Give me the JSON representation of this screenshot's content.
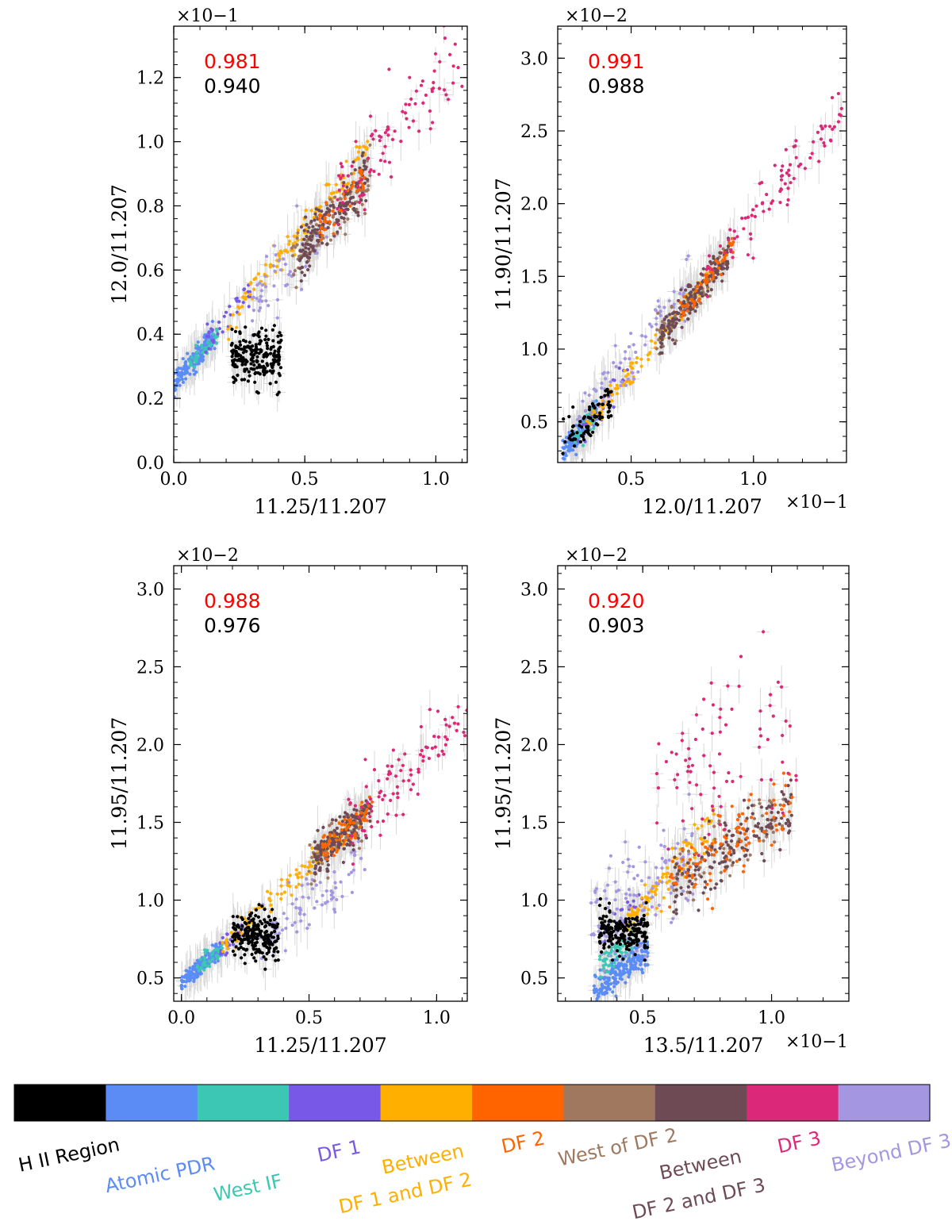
{
  "palette": {
    "hii": "#000000",
    "atomic_pdr": "#5b8cf5",
    "west_if": "#3cc6b4",
    "df1": "#7858e6",
    "between_12": "#ffaf00",
    "df2": "#ff6400",
    "west_df2": "#a07860",
    "between_23": "#6e4a54",
    "df3": "#dc2878",
    "beyond_df3": "#a596e1",
    "errorbar": "#d9d9d9",
    "corr_primary": "#ff0000",
    "corr_secondary": "#000000"
  },
  "chart_data": [
    {
      "id": "p1",
      "type": "scatter",
      "xlabel": "11.25/11.207",
      "ylabel": "12.0/11.207",
      "x_multiplier": "",
      "y_multiplier": "×10−1",
      "xlim": [
        0.0,
        1.12
      ],
      "ylim": [
        0.0,
        1.36
      ],
      "xticks": [
        0.0,
        0.5,
        1.0
      ],
      "xtick_labels": [
        "0.0",
        "0.5",
        "1.0"
      ],
      "yticks": [
        0.0,
        0.2,
        0.4,
        0.6,
        0.8,
        1.0,
        1.2
      ],
      "ytick_labels": [
        "0.0",
        "0.2",
        "0.4",
        "0.6",
        "0.8",
        "1.0",
        "1.2"
      ],
      "correlation_all": "0.981",
      "correlation_subset": "0.940",
      "clusters": [
        {
          "region": "atomic_pdr",
          "n": 170,
          "xr": [
            0.0,
            0.16
          ],
          "y0": 0.24,
          "slope": 1.0,
          "sy": 0.018
        },
        {
          "region": "west_if",
          "n": 40,
          "xr": [
            0.06,
            0.17
          ],
          "y0": 0.25,
          "slope": 0.9,
          "sy": 0.012
        },
        {
          "region": "df1",
          "n": 35,
          "xr": [
            0.12,
            0.3
          ],
          "y0": 0.27,
          "slope": 0.9,
          "sy": 0.02
        },
        {
          "region": "hii",
          "n": 220,
          "xr": [
            0.22,
            0.41
          ],
          "y0": 0.33,
          "slope": 0.0,
          "sy": 0.04
        },
        {
          "region": "between_12",
          "n": 110,
          "xr": [
            0.2,
            0.74
          ],
          "y0": 0.23,
          "slope": 1.02,
          "sy": 0.028
        },
        {
          "region": "beyond_df3",
          "n": 60,
          "xr": [
            0.3,
            0.62
          ],
          "y0": 0.28,
          "slope": 0.75,
          "sy": 0.06
        },
        {
          "region": "west_df2",
          "n": 90,
          "xr": [
            0.45,
            0.75
          ],
          "y0": 0.22,
          "slope": 0.9,
          "sy": 0.04
        },
        {
          "region": "between_23",
          "n": 170,
          "xr": [
            0.48,
            0.74
          ],
          "y0": 0.22,
          "slope": 0.9,
          "sy": 0.04
        },
        {
          "region": "df2",
          "n": 40,
          "xr": [
            0.55,
            0.74
          ],
          "y0": 0.22,
          "slope": 0.92,
          "sy": 0.03
        },
        {
          "region": "df3",
          "n": 90,
          "xr": [
            0.62,
            1.12
          ],
          "y0": 0.22,
          "slope": 0.98,
          "sy": 0.06
        }
      ]
    },
    {
      "id": "p2",
      "type": "scatter",
      "xlabel": "12.0/11.207",
      "ylabel": "11.90/11.207",
      "x_multiplier": "×10−1",
      "y_multiplier": "×10−2",
      "xlim": [
        0.2,
        1.38
      ],
      "ylim": [
        0.22,
        3.22
      ],
      "xticks": [
        0.5,
        1.0
      ],
      "xtick_labels": [
        "0.5",
        "1.0"
      ],
      "yticks": [
        0.5,
        1.0,
        1.5,
        2.0,
        2.5,
        3.0
      ],
      "ytick_labels": [
        "0.5",
        "1.0",
        "1.5",
        "2.0",
        "2.5",
        "3.0"
      ],
      "correlation_all": "0.991",
      "correlation_subset": "0.988",
      "clusters": [
        {
          "region": "atomic_pdr",
          "n": 120,
          "xr": [
            0.22,
            0.36
          ],
          "y0": -0.15,
          "slope": 2.0,
          "sy": 0.04
        },
        {
          "region": "west_if",
          "n": 40,
          "xr": [
            0.27,
            0.35
          ],
          "y0": -0.15,
          "slope": 2.0,
          "sy": 0.04
        },
        {
          "region": "hii",
          "n": 80,
          "xr": [
            0.22,
            0.42
          ],
          "y0": -0.05,
          "slope": 1.7,
          "sy": 0.08
        },
        {
          "region": "df1",
          "n": 30,
          "xr": [
            0.28,
            0.5
          ],
          "y0": -0.15,
          "slope": 2.0,
          "sy": 0.05
        },
        {
          "region": "between_12",
          "n": 90,
          "xr": [
            0.32,
            0.82
          ],
          "y0": -0.18,
          "slope": 2.05,
          "sy": 0.04
        },
        {
          "region": "beyond_df3",
          "n": 80,
          "xr": [
            0.28,
            0.75
          ],
          "y0": 0.0,
          "slope": 1.95,
          "sy": 0.08
        },
        {
          "region": "west_df2",
          "n": 80,
          "xr": [
            0.6,
            0.9
          ],
          "y0": -0.15,
          "slope": 2.0,
          "sy": 0.06
        },
        {
          "region": "between_23",
          "n": 180,
          "xr": [
            0.62,
            0.9
          ],
          "y0": -0.15,
          "slope": 2.0,
          "sy": 0.06
        },
        {
          "region": "df2",
          "n": 50,
          "xr": [
            0.7,
            0.92
          ],
          "y0": -0.18,
          "slope": 2.05,
          "sy": 0.04
        },
        {
          "region": "df3",
          "n": 90,
          "xr": [
            0.8,
            1.36
          ],
          "y0": -0.15,
          "slope": 2.05,
          "sy": 0.08
        }
      ]
    },
    {
      "id": "p3",
      "type": "scatter",
      "xlabel": "11.25/11.207",
      "ylabel": "11.95/11.207",
      "x_multiplier": "",
      "y_multiplier": "×10−2",
      "xlim": [
        -0.03,
        1.12
      ],
      "ylim": [
        0.35,
        3.15
      ],
      "xticks": [
        0.0,
        0.5,
        1.0
      ],
      "xtick_labels": [
        "0.0",
        "0.5",
        "1.0"
      ],
      "yticks": [
        0.5,
        1.0,
        1.5,
        2.0,
        2.5,
        3.0
      ],
      "ytick_labels": [
        "0.5",
        "1.0",
        "1.5",
        "2.0",
        "2.5",
        "3.0"
      ],
      "correlation_all": "0.988",
      "correlation_subset": "0.976",
      "clusters": [
        {
          "region": "atomic_pdr",
          "n": 160,
          "xr": [
            0.0,
            0.16
          ],
          "y0": 0.47,
          "slope": 1.4,
          "sy": 0.03
        },
        {
          "region": "west_if",
          "n": 40,
          "xr": [
            0.06,
            0.16
          ],
          "y0": 0.48,
          "slope": 1.4,
          "sy": 0.03
        },
        {
          "region": "hii",
          "n": 220,
          "xr": [
            0.2,
            0.38
          ],
          "y0": 0.76,
          "slope": 0.0,
          "sy": 0.07
        },
        {
          "region": "between_12",
          "n": 110,
          "xr": [
            0.15,
            0.72
          ],
          "y0": 0.45,
          "slope": 1.55,
          "sy": 0.04
        },
        {
          "region": "df1",
          "n": 30,
          "xr": [
            0.15,
            0.28
          ],
          "y0": 0.45,
          "slope": 1.5,
          "sy": 0.04
        },
        {
          "region": "beyond_df3",
          "n": 80,
          "xr": [
            0.3,
            0.72
          ],
          "y0": 0.3,
          "slope": 1.35,
          "sy": 0.09
        },
        {
          "region": "west_df2",
          "n": 70,
          "xr": [
            0.5,
            0.72
          ],
          "y0": 0.5,
          "slope": 1.45,
          "sy": 0.07
        },
        {
          "region": "between_23",
          "n": 170,
          "xr": [
            0.52,
            0.74
          ],
          "y0": 0.5,
          "slope": 1.45,
          "sy": 0.07
        },
        {
          "region": "df2",
          "n": 60,
          "xr": [
            0.55,
            0.75
          ],
          "y0": 0.48,
          "slope": 1.5,
          "sy": 0.05
        },
        {
          "region": "df3",
          "n": 90,
          "xr": [
            0.65,
            1.12
          ],
          "y0": 0.45,
          "slope": 1.55,
          "sy": 0.12
        }
      ]
    },
    {
      "id": "p4",
      "type": "scatter",
      "xlabel": "13.5/11.207",
      "ylabel": "11.95/11.207",
      "x_multiplier": "×10−1",
      "y_multiplier": "×10−2",
      "xlim": [
        0.17,
        1.3
      ],
      "ylim": [
        0.35,
        3.15
      ],
      "xticks": [
        0.5,
        1.0
      ],
      "xtick_labels": [
        "0.5",
        "1.0"
      ],
      "yticks": [
        0.5,
        1.0,
        1.5,
        2.0,
        2.5,
        3.0
      ],
      "ytick_labels": [
        "0.5",
        "1.0",
        "1.5",
        "2.0",
        "2.5",
        "3.0"
      ],
      "correlation_all": "0.920",
      "correlation_subset": "0.903",
      "clusters": [
        {
          "region": "atomic_pdr",
          "n": 200,
          "xr": [
            0.31,
            0.52
          ],
          "y0": 0.0,
          "slope": 1.3,
          "sy": 0.05
        },
        {
          "region": "west_if",
          "n": 60,
          "xr": [
            0.33,
            0.47
          ],
          "y0": 0.18,
          "slope": 1.2,
          "sy": 0.04
        },
        {
          "region": "hii",
          "n": 200,
          "xr": [
            0.33,
            0.52
          ],
          "y0": 0.8,
          "slope": 0.0,
          "sy": 0.07
        },
        {
          "region": "beyond_df3",
          "n": 120,
          "xr": [
            0.3,
            0.7
          ],
          "y0": 0.55,
          "slope": 1.0,
          "sy": 0.18
        },
        {
          "region": "between_12",
          "n": 100,
          "xr": [
            0.42,
            0.78
          ],
          "y0": 0.05,
          "slope": 1.85,
          "sy": 0.06
        },
        {
          "region": "df1",
          "n": 25,
          "xr": [
            0.35,
            0.5
          ],
          "y0": 0.35,
          "slope": 1.3,
          "sy": 0.08
        },
        {
          "region": "west_df2",
          "n": 70,
          "xr": [
            0.62,
            1.05
          ],
          "y0": 0.55,
          "slope": 0.95,
          "sy": 0.1
        },
        {
          "region": "between_23",
          "n": 160,
          "xr": [
            0.62,
            1.08
          ],
          "y0": 0.5,
          "slope": 1.0,
          "sy": 0.1
        },
        {
          "region": "df2",
          "n": 100,
          "xr": [
            0.6,
            1.08
          ],
          "y0": 0.4,
          "slope": 1.15,
          "sy": 0.1
        },
        {
          "region": "df3",
          "n": 80,
          "xr": [
            0.55,
            1.1
          ],
          "y0": 1.2,
          "slope": 0.9,
          "sy": 0.28
        }
      ]
    }
  ],
  "legend": [
    {
      "key": "hii",
      "lines": [
        "H II Region"
      ]
    },
    {
      "key": "atomic_pdr",
      "lines": [
        "Atomic PDR"
      ]
    },
    {
      "key": "west_if",
      "lines": [
        "West IF"
      ]
    },
    {
      "key": "df1",
      "lines": [
        "DF 1"
      ]
    },
    {
      "key": "between_12",
      "lines": [
        "Between",
        "DF 1 and DF 2"
      ]
    },
    {
      "key": "df2",
      "lines": [
        "DF 2"
      ]
    },
    {
      "key": "west_df2",
      "lines": [
        "West of DF 2"
      ]
    },
    {
      "key": "between_23",
      "lines": [
        "Between",
        "DF 2 and DF 3"
      ]
    },
    {
      "key": "df3",
      "lines": [
        "DF 3"
      ]
    },
    {
      "key": "beyond_df3",
      "lines": [
        "Beyond DF 3"
      ]
    }
  ]
}
